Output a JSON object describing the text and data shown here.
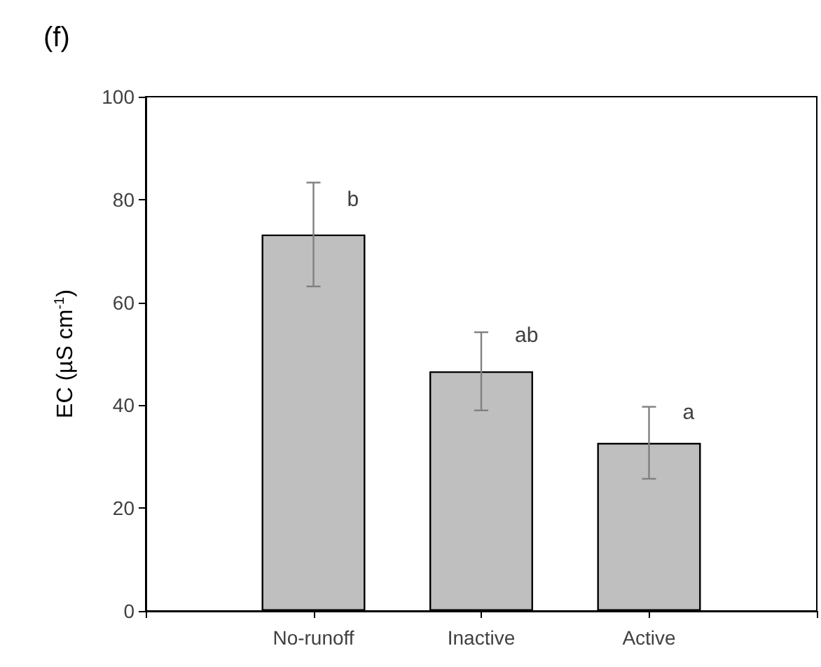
{
  "chart_data": {
    "type": "bar",
    "title": "(f)",
    "ylabel": "EC (µS cm$^{-1}$)",
    "categories": [
      null,
      "No-runoff",
      "Inactive",
      "Active",
      null
    ],
    "values": [
      null,
      73.2,
      46.6,
      32.7,
      null
    ],
    "errors": [
      null,
      10.1,
      7.6,
      7.0,
      null
    ],
    "color": "#bfbfbf",
    "ylim": [
      0,
      100
    ],
    "yticks": [
      0,
      20,
      40,
      60,
      80,
      100
    ],
    "annotations": [
      {
        "text": "b",
        "x": "No-runoff",
        "y": 80
      },
      {
        "text": "ab",
        "x": "Inactive",
        "y": 53.6
      },
      {
        "text": "a",
        "x": "Active",
        "y": 38.5
      }
    ]
  }
}
